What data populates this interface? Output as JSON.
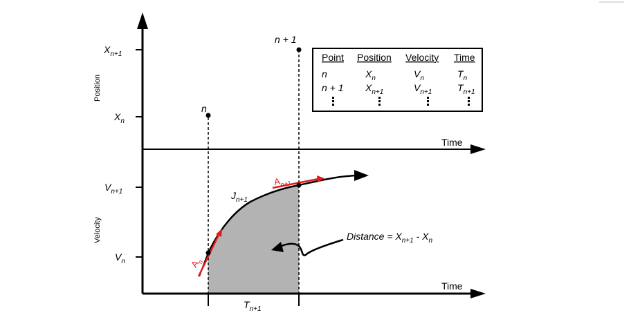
{
  "top_axis": {
    "y_label": "Position",
    "x_label": "Time",
    "ticks": [
      {
        "base": "X",
        "sub": "n+1"
      },
      {
        "base": "X",
        "sub": "n"
      }
    ]
  },
  "bottom_axis": {
    "y_label": "Velocity",
    "x_label": "Time",
    "ticks": [
      {
        "base": "V",
        "sub": "n+1"
      },
      {
        "base": "V",
        "sub": "n"
      }
    ],
    "interval": {
      "base": "T",
      "sub": "n+1"
    }
  },
  "points": {
    "n": "n",
    "n1": "n + 1"
  },
  "curve_labels": {
    "jerk": {
      "base": "J",
      "sub": "n+1"
    },
    "accel_n": {
      "base": "A",
      "sub": "n"
    },
    "accel_n1": {
      "base": "A",
      "sub": "n+1"
    }
  },
  "distance": {
    "prefix": "Distance = X",
    "sub1": "n+1",
    "mid": " - X",
    "sub2": "n"
  },
  "table": {
    "headers": [
      "Point",
      "Position",
      "Velocity",
      "Time"
    ],
    "row1": [
      {
        "base": "n",
        "sub": ""
      },
      {
        "base": "X",
        "sub": "n"
      },
      {
        "base": "V",
        "sub": "n"
      },
      {
        "base": "T",
        "sub": "n"
      }
    ],
    "row2": [
      {
        "base": "n + 1",
        "sub": ""
      },
      {
        "base": "X",
        "sub": "n+1"
      },
      {
        "base": "V",
        "sub": "n+1"
      },
      {
        "base": "T",
        "sub": "n+1"
      }
    ]
  },
  "colors": {
    "accent_red": "#e21b1b",
    "shade": "#b3b3b3"
  }
}
